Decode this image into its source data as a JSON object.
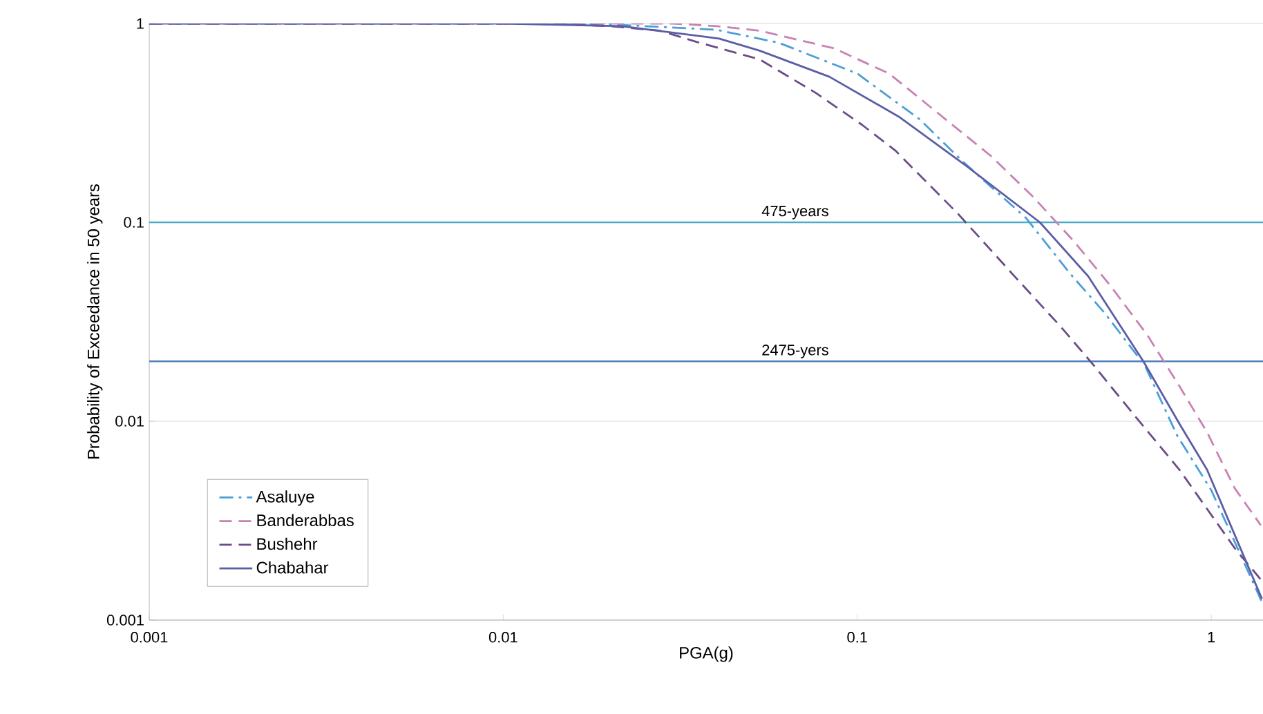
{
  "chart_data": {
    "type": "line",
    "xlabel": "PGA(g)",
    "ylabel": "Probability of Exceedance in 50 years",
    "log": "xy",
    "xlim": [
      0.001,
      1.4
    ],
    "ylim": [
      0.001,
      1
    ],
    "xticks": [
      0.001,
      0.01,
      0.1,
      1
    ],
    "yticks": [
      0.001,
      0.01,
      0.1,
      1
    ],
    "grid": "y",
    "legend": "bottom left",
    "ref_lines": [
      {
        "axis": "y",
        "value": 0.1,
        "label": "475-years",
        "color": "#4bacc6"
      },
      {
        "axis": "y",
        "value": 0.02,
        "label": "2475-yers",
        "color": "#4f81bd"
      }
    ],
    "series": [
      {
        "name": "Asaluye",
        "color": "#4a9fd6",
        "line_style": "dashdot",
        "x": [
          0.001,
          0.01,
          0.02,
          0.04,
          0.06,
          0.1,
          0.15,
          0.2,
          0.3,
          0.4,
          0.5,
          0.65,
          0.8,
          1,
          1.2,
          1.4
        ],
        "values": [
          1,
          1,
          0.99,
          0.93,
          0.8,
          0.56,
          0.33,
          0.2,
          0.105,
          0.055,
          0.035,
          0.019,
          0.0085,
          0.0045,
          0.0022,
          0.0012
        ]
      },
      {
        "name": "Banderabbas",
        "color": "#c882b4",
        "line_style": "dashed",
        "x": [
          0.001,
          0.01,
          0.03,
          0.04,
          0.053,
          0.086,
          0.123,
          0.239,
          0.313,
          0.41,
          0.519,
          0.661,
          0.813,
          0.973,
          1.165,
          1.38
        ],
        "values": [
          1,
          1,
          1,
          0.97,
          0.92,
          0.75,
          0.56,
          0.215,
          0.135,
          0.08,
          0.048,
          0.027,
          0.015,
          0.0088,
          0.0046,
          0.003
        ]
      },
      {
        "name": "Bushehr",
        "color": "#6b4c8a",
        "line_style": "dashed",
        "x": [
          0.001,
          0.01,
          0.015,
          0.02,
          0.0277,
          0.035,
          0.053,
          0.076,
          0.103,
          0.128,
          0.193,
          0.277,
          0.375,
          0.46,
          0.604,
          0.813,
          1.165,
          1.38
        ],
        "values": [
          1,
          1,
          0.99,
          0.97,
          0.92,
          0.81,
          0.66,
          0.45,
          0.31,
          0.23,
          0.11,
          0.054,
          0.03,
          0.0196,
          0.0108,
          0.0057,
          0.0023,
          0.0016
        ]
      },
      {
        "name": "Chabahar",
        "color": "#5b5ea6",
        "line_style": "solid",
        "x": [
          0.001,
          0.01,
          0.0216,
          0.0407,
          0.053,
          0.0834,
          0.131,
          0.205,
          0.328,
          0.449,
          0.643,
          0.813,
          0.973,
          1.39
        ],
        "values": [
          1,
          1,
          0.97,
          0.84,
          0.73,
          0.54,
          0.34,
          0.19,
          0.1,
          0.0536,
          0.02,
          0.0097,
          0.0057,
          0.00128
        ]
      }
    ]
  }
}
